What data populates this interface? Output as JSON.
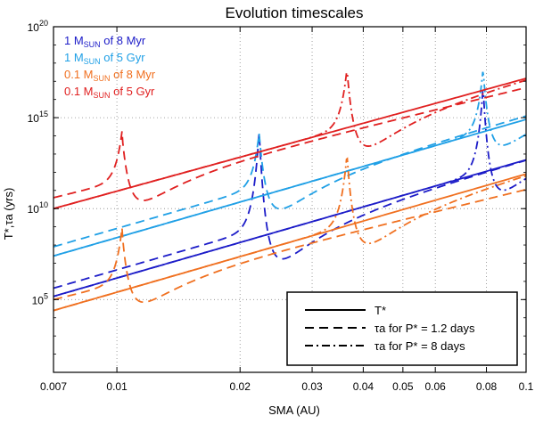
{
  "chart_data": {
    "type": "line",
    "title": "Evolution timescales",
    "xlabel": "SMA (AU)",
    "ylabel": "T*,τa (yrs)",
    "xscale": "log",
    "yscale": "log",
    "xlim": [
      0.007,
      0.1
    ],
    "ylim": [
      10.0,
      1e+20
    ],
    "x_ticks": [
      {
        "value": 0.007,
        "label": "0.007"
      },
      {
        "value": 0.01,
        "label": "0.01"
      },
      {
        "value": 0.02,
        "label": "0.02"
      },
      {
        "value": 0.03,
        "label": "0.03"
      },
      {
        "value": 0.04,
        "label": "0.04"
      },
      {
        "value": 0.05,
        "label": "0.05"
      },
      {
        "value": 0.06,
        "label": "0.06"
      },
      {
        "value": 0.08,
        "label": "0.08"
      },
      {
        "value": 0.1,
        "label": "0.1"
      }
    ],
    "y_ticks": [
      {
        "value": 100000.0,
        "base": "10",
        "exp": "5"
      },
      {
        "value": 10000000000.0,
        "base": "10",
        "exp": "10"
      },
      {
        "value": 1000000000000000.0,
        "base": "10",
        "exp": "15"
      },
      {
        "value": 1e+20,
        "base": "10",
        "exp": "20"
      }
    ],
    "grid": true,
    "legend_colors": {
      "title": "upper-left",
      "position": "top-left",
      "entries": [
        {
          "main": "1 M",
          "sub": "SUN",
          "rest": " of 8 Myr",
          "color": "#1c1cc8"
        },
        {
          "main": "1 M",
          "sub": "SUN",
          "rest": " of 5 Gyr",
          "color": "#20a0e6"
        },
        {
          "main": "0.1 M",
          "sub": "SUN",
          "rest": " of 8 Myr",
          "color": "#f07020"
        },
        {
          "main": "0.1 M",
          "sub": "SUN",
          "rest": " of 5 Gyr",
          "color": "#e02020"
        }
      ]
    },
    "legend_styles": {
      "position": "bottom-right",
      "entries": [
        {
          "style": "solid",
          "label": "T*"
        },
        {
          "style": "dashed",
          "label": "τa for P* = 1.2 days"
        },
        {
          "style": "dashdot",
          "label": "τa for P* = 8 days"
        }
      ]
    },
    "series": [
      {
        "name": "1 MSUN of 8 Myr T*",
        "color": "#1c1cc8",
        "style": "solid",
        "kind": "power",
        "x0": 0.007,
        "y0": 150000.0,
        "slope": 6.5
      },
      {
        "name": "1 MSUN of 8 Myr τa P*=1.2 days",
        "color": "#1c1cc8",
        "style": "dashed",
        "kind": "resonant",
        "x0": 0.007,
        "y0": 150000.0,
        "slope": 6.5,
        "ac": 0.0223,
        "peak": 100000000000000.0,
        "amp": 3.0,
        "width": 0.045,
        "offset": 0.45
      },
      {
        "name": "1 MSUN of 8 Myr τa P*=8 days",
        "color": "#1c1cc8",
        "style": "dashdot",
        "kind": "resonant",
        "x0": 0.007,
        "y0": 150000.0,
        "slope": 6.5,
        "ac": 0.0785,
        "peak": 5e+16,
        "amp": 2.5,
        "width": 0.04,
        "offset": 0.0
      },
      {
        "name": "1 MSUN of 5 Gyr T*",
        "color": "#20a0e6",
        "style": "solid",
        "kind": "power",
        "x0": 0.007,
        "y0": 25000000.0,
        "slope": 6.5
      },
      {
        "name": "1 MSUN of 5 Gyr τa P*=1.2 days",
        "color": "#20a0e6",
        "style": "dashed",
        "kind": "resonant",
        "x0": 0.007,
        "y0": 40000000.0,
        "slope": 6.5,
        "ac": 0.0223,
        "peak": 100000000000000.0,
        "amp": 2.3,
        "width": 0.045,
        "offset": 0.3
      },
      {
        "name": "1 MSUN of 5 Gyr τa P*=8 days",
        "color": "#20a0e6",
        "style": "dashdot",
        "kind": "resonant",
        "x0": 0.007,
        "y0": 25000000.0,
        "slope": 6.5,
        "ac": 0.0785,
        "peak": 5e+17,
        "amp": 2.0,
        "width": 0.04,
        "offset": 0.0
      },
      {
        "name": "0.1 MSUN of 8 Myr T*",
        "color": "#f07020",
        "style": "solid",
        "kind": "power",
        "x0": 0.007,
        "y0": 25000.0,
        "slope": 6.5
      },
      {
        "name": "0.1 MSUN of 8 Myr τa P*=1.2 days",
        "color": "#f07020",
        "style": "dashed",
        "kind": "resonant",
        "x0": 0.007,
        "y0": 50000.0,
        "slope": 5.5,
        "ac": 0.0103,
        "peak": 500000000.0,
        "amp": 2.0,
        "width": 0.045,
        "offset": 0.3
      },
      {
        "name": "0.1 MSUN of 8 Myr τa P*=8 days",
        "color": "#f07020",
        "style": "dashdot",
        "kind": "resonant",
        "x0": 0.007,
        "y0": 25000.0,
        "slope": 6.5,
        "ac": 0.0365,
        "peak": 10000000000000.0,
        "amp": 2.5,
        "width": 0.045,
        "offset": 0.0
      }
    ],
    "series_b": [
      {
        "name": "0.1 MSUN of 5 Gyr T*",
        "color": "#e02020",
        "style": "solid",
        "kind": "power",
        "x0": 0.007,
        "y0": 10000000000.0,
        "slope": 6.2
      },
      {
        "name": "0.1 MSUN of 5 Gyr τa P*=1.2 days",
        "color": "#e02020",
        "style": "dashed",
        "kind": "resonant",
        "x0": 0.007,
        "y0": 20000000000.0,
        "slope": 5.5,
        "ac": 0.0103,
        "peak": 100000000000000.0,
        "amp": 2.0,
        "width": 0.045,
        "offset": 0.3
      },
      {
        "name": "0.1 MSUN of 5 Gyr τa P*=8 days",
        "color": "#e02020",
        "style": "dashdot",
        "kind": "resonant",
        "x0": 0.007,
        "y0": 10000000000.0,
        "slope": 6.2,
        "ac": 0.0365,
        "peak": 5e+17,
        "amp": 2.5,
        "width": 0.045,
        "offset": 0.0
      }
    ]
  }
}
